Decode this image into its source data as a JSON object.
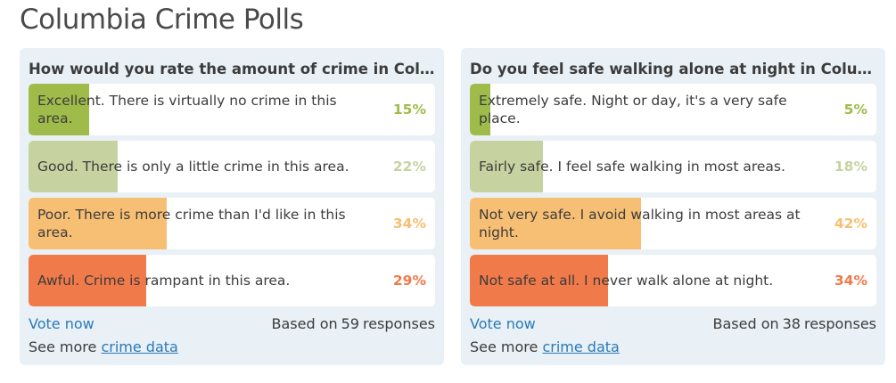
{
  "page_title": "Columbia Crime Polls",
  "polls": [
    {
      "question": "How would you rate the amount of crime in Columbia?",
      "options": [
        {
          "label": "Excellent. There is virtually no crime in this area.",
          "percent": 15,
          "percent_label": "15%",
          "color": "#9fbc4a"
        },
        {
          "label": "Good. There is only a little crime in this area.",
          "percent": 22,
          "percent_label": "22%",
          "color": "#c6d3a0"
        },
        {
          "label": "Poor. There is more crime than I'd like in this area.",
          "percent": 34,
          "percent_label": "34%",
          "color": "#f7bf73"
        },
        {
          "label": "Awful. Crime is rampant in this area.",
          "percent": 29,
          "percent_label": "29%",
          "color": "#f07a4a"
        }
      ],
      "vote_label": "Vote now",
      "responses_prefix": "Based on",
      "responses_count": "59",
      "responses_suffix": "responses",
      "see_more_prefix": "See more",
      "see_more_link": "crime data"
    },
    {
      "question": "Do you feel safe walking alone at night in Columbia?",
      "options": [
        {
          "label": "Extremely safe. Night or day, it's a very safe place.",
          "percent": 5,
          "percent_label": "5%",
          "color": "#9fbc4a"
        },
        {
          "label": "Fairly safe. I feel safe walking in most areas.",
          "percent": 18,
          "percent_label": "18%",
          "color": "#c6d3a0"
        },
        {
          "label": "Not very safe. I avoid walking in most areas at night.",
          "percent": 42,
          "percent_label": "42%",
          "color": "#f7bf73"
        },
        {
          "label": "Not safe at all. I never walk alone at night.",
          "percent": 34,
          "percent_label": "34%",
          "color": "#f07a4a"
        }
      ],
      "vote_label": "Vote now",
      "responses_prefix": "Based on",
      "responses_count": "38",
      "responses_suffix": "responses",
      "see_more_prefix": "See more",
      "see_more_link": "crime data"
    }
  ]
}
